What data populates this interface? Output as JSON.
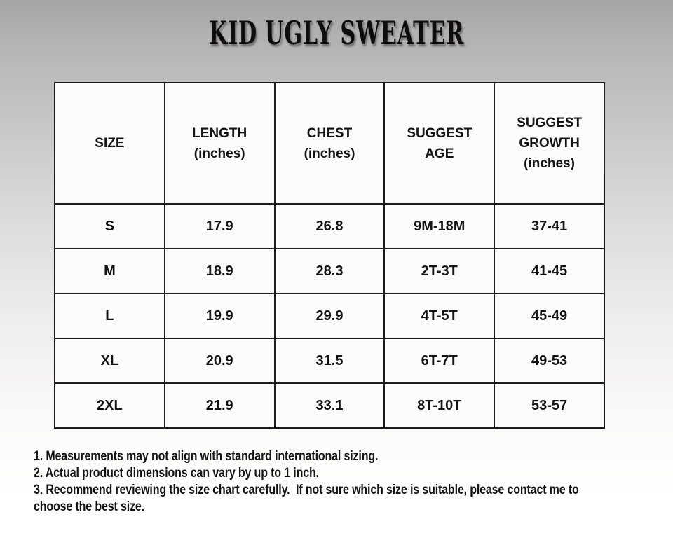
{
  "title": "KID UGLY SWEATER",
  "size_chart": {
    "columns": [
      [
        "SIZE"
      ],
      [
        "LENGTH",
        "(inches)"
      ],
      [
        "CHEST",
        "(inches)"
      ],
      [
        "SUGGEST",
        "AGE"
      ],
      [
        "SUGGEST",
        "GROWTH",
        "(inches)"
      ]
    ],
    "rows": [
      [
        "S",
        "17.9",
        "26.8",
        "9M-18M",
        "37-41"
      ],
      [
        "M",
        "18.9",
        "28.3",
        "2T-3T",
        "41-45"
      ],
      [
        "L",
        "19.9",
        "29.9",
        "4T-5T",
        "45-49"
      ],
      [
        "XL",
        "20.9",
        "31.5",
        "6T-7T",
        "49-53"
      ],
      [
        "2XL",
        "21.9",
        "33.1",
        "8T-10T",
        "53-57"
      ]
    ]
  },
  "notes": [
    [
      "1. Measurements may not align with standard international sizing."
    ],
    [
      "2. Actual product dimensions can vary by up to 1 inch."
    ],
    [
      "3. Recommend reviewing the size chart carefully.  If not sure which size is suitable, please contact me to",
      "choose the best size."
    ]
  ],
  "colors": {
    "text": "#141414",
    "table_border": "#1b1b1b",
    "cell_background": "#fbfbfa",
    "background_top": "#a8a6a4",
    "background_bottom": "#ffffff"
  }
}
